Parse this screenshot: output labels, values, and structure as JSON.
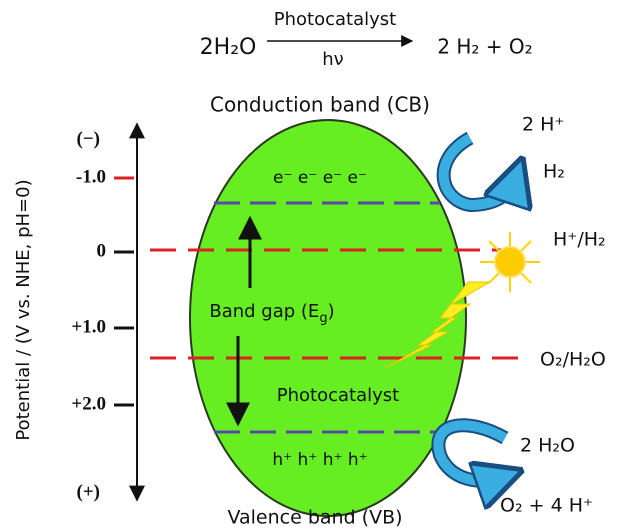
{
  "equation": {
    "reactant": "2H₂O",
    "above_arrow": "Photocatalyst",
    "below_arrow": "hν",
    "product": "2 H₂ + O₂"
  },
  "conduction_band": "Conduction band  (CB)",
  "valence_band": "Valence band (VB)",
  "axis": {
    "label": "Potential / (V vs. NHE, pH=0)",
    "ticks": [
      "(−)",
      "-1.0",
      "0",
      "+1.0",
      "+2.0",
      "(+)"
    ]
  },
  "electrons": "e⁻ e⁻ e⁻ e⁻",
  "holes": "h⁺ h⁺ h⁺ h⁺",
  "band_gap": {
    "text": "Band gap (E",
    "sub": "g",
    "end": ")"
  },
  "photocatalyst": "Photocatalyst",
  "right_labels": {
    "h_plus_in": "2 H⁺",
    "h2_out": "H₂",
    "h_couple": "H⁺/H₂",
    "o_couple": "O₂/H₂O",
    "water_in": "2 H₂O",
    "o2_out": "O₂ + 4 H⁺"
  }
}
